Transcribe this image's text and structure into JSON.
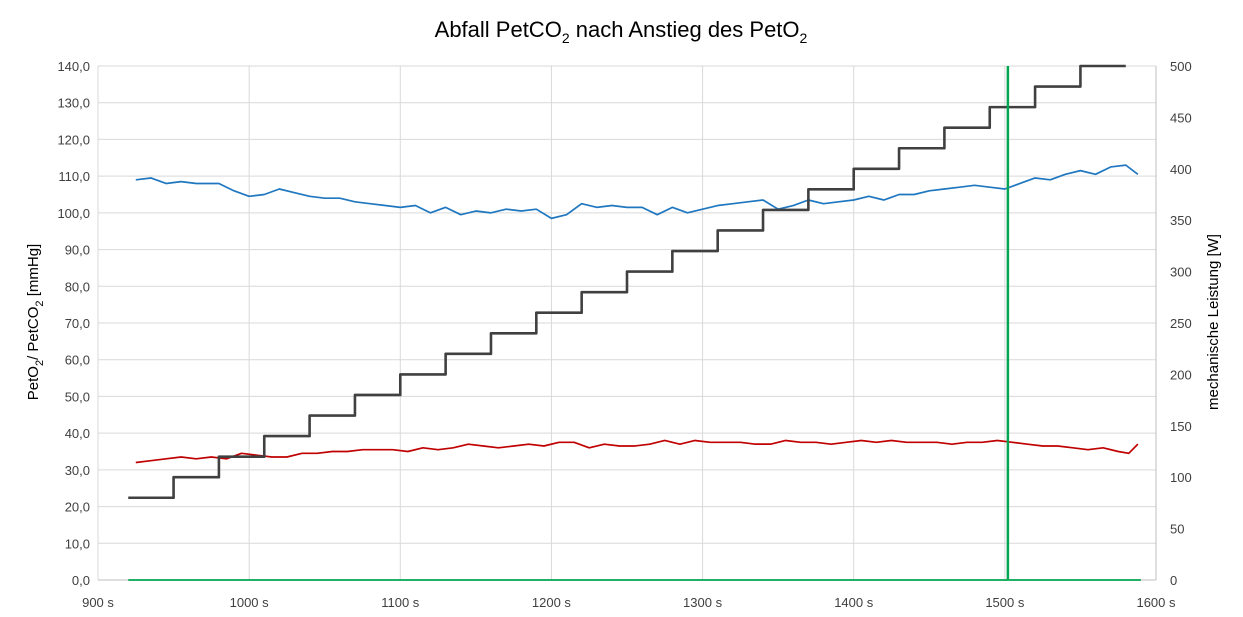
{
  "chart_data": {
    "type": "line",
    "title": "Abfall PetCO",
    "title_sub1": "2",
    "title_mid": " nach Anstieg des PetO",
    "title_sub2": "2",
    "y_left_label_parts": [
      "PetO",
      "2",
      "/ PetCO",
      "2",
      " [mmHg]"
    ],
    "y_right_label": "mechanische Leistung [W]",
    "x_unit": "s",
    "x_ticks": [
      900,
      1000,
      1100,
      1200,
      1300,
      1400,
      1500,
      1600
    ],
    "x_range": [
      900,
      1600
    ],
    "y_left_range": [
      0,
      140
    ],
    "y_left_ticks": [
      "0,0",
      "10,0",
      "20,0",
      "30,0",
      "40,0",
      "50,0",
      "60,0",
      "70,0",
      "80,0",
      "90,0",
      "100,0",
      "110,0",
      "120,0",
      "130,0",
      "140,0"
    ],
    "y_right_range": [
      0,
      500
    ],
    "y_right_ticks": [
      "0",
      "50",
      "100",
      "150",
      "200",
      "250",
      "300",
      "350",
      "400",
      "450",
      "500"
    ],
    "grid": true,
    "legend": "none",
    "vertical_marker_x": 1502,
    "series": [
      {
        "axis": "left",
        "color": "#1F77C0",
        "x": [
          925,
          935,
          945,
          955,
          965,
          980,
          990,
          1000,
          1010,
          1020,
          1030,
          1040,
          1050,
          1060,
          1070,
          1080,
          1090,
          1100,
          1110,
          1120,
          1130,
          1140,
          1150,
          1160,
          1170,
          1180,
          1190,
          1200,
          1210,
          1220,
          1230,
          1240,
          1250,
          1260,
          1270,
          1280,
          1290,
          1300,
          1310,
          1320,
          1330,
          1340,
          1350,
          1360,
          1370,
          1380,
          1390,
          1400,
          1410,
          1420,
          1430,
          1440,
          1450,
          1460,
          1470,
          1480,
          1490,
          1500,
          1510,
          1520,
          1530,
          1540,
          1550,
          1560,
          1570,
          1580,
          1588
        ],
        "values": [
          109,
          109.5,
          108,
          108.5,
          108,
          108,
          106,
          104.5,
          105,
          106.5,
          105.5,
          104.5,
          104,
          104,
          103,
          102.5,
          102,
          101.5,
          102,
          100,
          101.5,
          99.5,
          100.5,
          100,
          101,
          100.5,
          101,
          98.5,
          99.5,
          102.5,
          101.5,
          102,
          101.5,
          101.5,
          99.5,
          101.5,
          100,
          101,
          102,
          102.5,
          103,
          103.5,
          101,
          102,
          103.5,
          102.5,
          103,
          103.5,
          104.5,
          103.5,
          105,
          105,
          106,
          106.5,
          107,
          107.5,
          107,
          106.5,
          108,
          109.5,
          109,
          110.5,
          111.5,
          110.5,
          112.5,
          113,
          110.5
        ]
      },
      {
        "axis": "left",
        "color": "#C00000",
        "x": [
          925,
          935,
          945,
          955,
          965,
          975,
          985,
          995,
          1005,
          1015,
          1025,
          1035,
          1045,
          1055,
          1065,
          1075,
          1085,
          1095,
          1105,
          1115,
          1125,
          1135,
          1145,
          1155,
          1165,
          1175,
          1185,
          1195,
          1205,
          1215,
          1225,
          1235,
          1245,
          1255,
          1265,
          1275,
          1285,
          1295,
          1305,
          1315,
          1325,
          1335,
          1345,
          1355,
          1365,
          1375,
          1385,
          1395,
          1405,
          1415,
          1425,
          1435,
          1445,
          1455,
          1465,
          1475,
          1485,
          1495,
          1505,
          1515,
          1525,
          1535,
          1545,
          1555,
          1565,
          1575,
          1582,
          1588
        ],
        "values": [
          32,
          32.5,
          33,
          33.5,
          33,
          33.5,
          33,
          34.5,
          34,
          33.5,
          33.5,
          34.5,
          34.5,
          35,
          35,
          35.5,
          35.5,
          35.5,
          35,
          36,
          35.5,
          36,
          37,
          36.5,
          36,
          36.5,
          37,
          36.5,
          37.5,
          37.5,
          36,
          37,
          36.5,
          36.5,
          37,
          38,
          37,
          38,
          37.5,
          37.5,
          37.5,
          37,
          37,
          38,
          37.5,
          37.5,
          37,
          37.5,
          38,
          37.5,
          38,
          37.5,
          37.5,
          37.5,
          37,
          37.5,
          37.5,
          38,
          37.5,
          37,
          36.5,
          36.5,
          36,
          35.5,
          36,
          35,
          34.5,
          37
        ]
      },
      {
        "axis": "right",
        "color": "#404040",
        "type": "step",
        "x": [
          920,
          950,
          980,
          1010,
          1040,
          1070,
          1100,
          1130,
          1160,
          1190,
          1220,
          1250,
          1280,
          1310,
          1340,
          1370,
          1400,
          1430,
          1460,
          1490,
          1520,
          1550,
          1580
        ],
        "values": [
          80,
          100,
          120,
          140,
          160,
          180,
          200,
          220,
          240,
          260,
          280,
          300,
          320,
          340,
          360,
          380,
          400,
          420,
          440,
          460,
          480,
          500,
          500
        ]
      },
      {
        "axis": "left",
        "color": "#00A651",
        "x": [
          920,
          1590
        ],
        "values": [
          0,
          0
        ]
      }
    ]
  }
}
